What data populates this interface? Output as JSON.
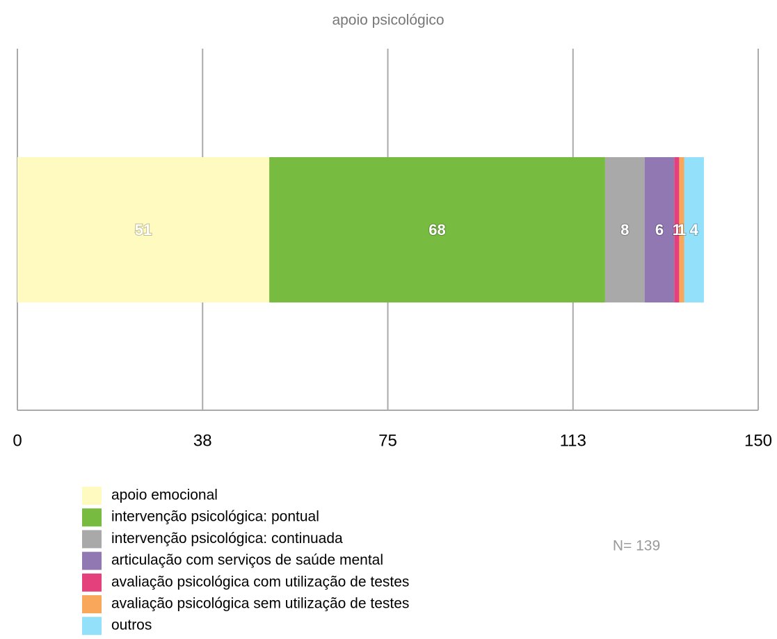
{
  "chart_data": {
    "type": "bar",
    "orientation": "horizontal",
    "stacked": true,
    "title": "apoio psicológico",
    "annotation": "N= 139",
    "series": [
      {
        "name": "apoio emocional",
        "color": "#fffbc0",
        "values": [
          51
        ]
      },
      {
        "name": "intervenção psicológica: pontual",
        "color": "#77bb41",
        "values": [
          68
        ]
      },
      {
        "name": "intervenção psicológica: continuada",
        "color": "#a9a9a9",
        "values": [
          8
        ]
      },
      {
        "name": "articulação com serviços de saúde mental",
        "color": "#9278b3",
        "values": [
          6
        ]
      },
      {
        "name": "avaliação psicológica com utilização de testes",
        "color": "#e4407b",
        "values": [
          1
        ]
      },
      {
        "name": "avaliação psicológica sem utilização de testes",
        "color": "#f9a75b",
        "values": [
          1
        ]
      },
      {
        "name": "outros",
        "color": "#92e0f9",
        "values": [
          4
        ]
      }
    ],
    "xlim": [
      0,
      150
    ],
    "xticks": [
      0,
      {
        "value": 37.5,
        "label": "38"
      },
      75,
      {
        "value": 112.5,
        "label": "113"
      },
      150
    ],
    "grid": true
  }
}
